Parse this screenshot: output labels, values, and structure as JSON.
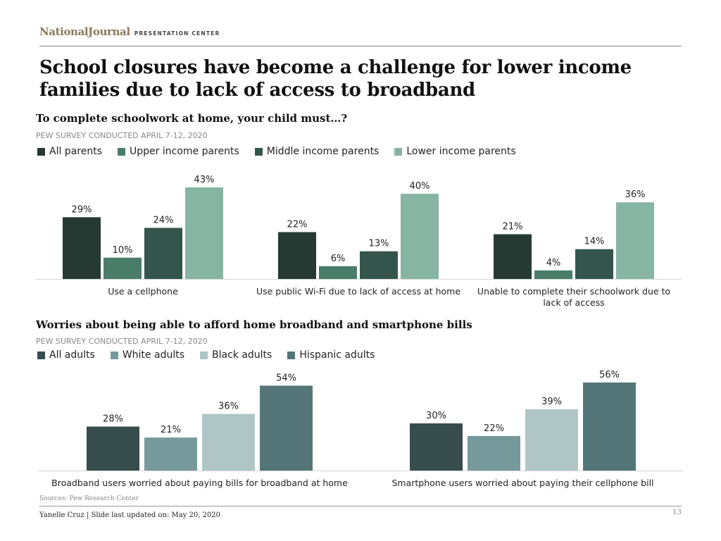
{
  "brand": {
    "name": "NationalJournal",
    "sub": "PRESENTATION CENTER"
  },
  "slide_title": "School closures have become a challenge for lower income families due to lack of access to broadband",
  "chart_data": [
    {
      "type": "bar",
      "title": "To complete schoolwork at home, your child must…?",
      "subtitle": "PEW SURVEY CONDUCTED APRIL 7-12, 2020",
      "categories": [
        "Use a cellphone",
        "Use public Wi-Fi due to lack of access at home",
        "Unable to complete their schoolwork due to lack of access"
      ],
      "series": [
        {
          "name": "All parents",
          "values": [
            29,
            22,
            21
          ],
          "color": "#263a33"
        },
        {
          "name": "Upper income parents",
          "values": [
            10,
            6,
            4
          ],
          "color": "#4a7c6a"
        },
        {
          "name": "Middle income parents",
          "values": [
            24,
            13,
            14
          ],
          "color": "#34554b"
        },
        {
          "name": "Lower income parents",
          "values": [
            43,
            40,
            36
          ],
          "color": "#86b5a4"
        }
      ],
      "value_suffix": "%",
      "ylim": [
        0,
        45
      ],
      "legend": "top-left",
      "grid": false
    },
    {
      "type": "bar",
      "title": "Worries about being able to afford home broadband and smartphone bills",
      "subtitle": "PEW SURVEY CONDUCTED APRIL 7-12, 2020",
      "categories": [
        "Broadband users worried about paying bills for broadband at home",
        "Smartphone users worried about paying their cellphone bill"
      ],
      "series": [
        {
          "name": "All adults",
          "values": [
            28,
            30
          ],
          "color": "#374c4c"
        },
        {
          "name": "White adults",
          "values": [
            21,
            22
          ],
          "color": "#76999c"
        },
        {
          "name": "Black adults",
          "values": [
            36,
            39
          ],
          "color": "#b0c6c6"
        },
        {
          "name": "Hispanic adults",
          "values": [
            54,
            56
          ],
          "color": "#557678"
        }
      ],
      "value_suffix": "%",
      "ylim": [
        0,
        56
      ],
      "legend": "top-left",
      "grid": false
    }
  ],
  "footer": {
    "sources": "Sources: Pew Research Center",
    "author": "Yanelle Cruz | Slide last updated on: May 20, 2020",
    "page": "13"
  }
}
